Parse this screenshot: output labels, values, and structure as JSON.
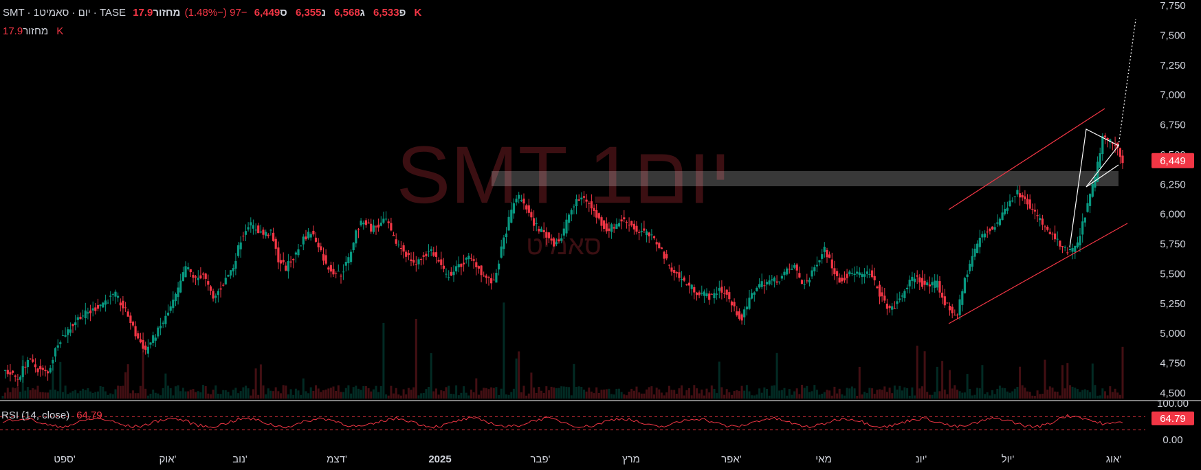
{
  "header": {
    "symbol": "SMT · 1יום · סאמיט · TASE",
    "o_label": "פ",
    "o_value": "6,533",
    "h_label": "ג",
    "h_value": "6,568",
    "l_label": "נ",
    "l_value": "6,355",
    "c_label": "ס",
    "c_value": "6,449",
    "change": "−97 (−1.48%)",
    "vol_label": "מחזור",
    "vol_value": "17.9 K"
  },
  "volume_legend": {
    "label": "מחזור",
    "value": "17.9 K"
  },
  "watermark": {
    "line1": "SMT 1יום",
    "line2": "סאמיט"
  },
  "colors": {
    "background": "#000000",
    "up": "#089981",
    "down": "#f23645",
    "text": "#d1d4dc",
    "rsi_line": "#f23645",
    "trend": "#f23645",
    "pattern": "#ffffff"
  },
  "chart_data": [
    {
      "type": "candlestick",
      "y_axis_ticks": [
        "7,750",
        "7,500",
        "7,250",
        "7,000",
        "6,750",
        "6,500",
        "6,250",
        "6,000",
        "5,750",
        "5,500",
        "5,250",
        "5,000",
        "4,750",
        "4,500"
      ],
      "ylim": [
        4500,
        7750
      ],
      "x_axis_labels": [
        "ספט'",
        "אוק'",
        "נוב'",
        "דצמ'",
        "2025",
        "פבר'",
        "מרץ",
        "אפר'",
        "מאי",
        "יונ'",
        "יול'",
        "אוג'"
      ],
      "last_price_label": "6,449",
      "price_path": [
        [
          0,
          4700
        ],
        [
          6,
          4620
        ],
        [
          10,
          4780
        ],
        [
          14,
          4700
        ],
        [
          18,
          4660
        ],
        [
          22,
          4930
        ],
        [
          27,
          5050
        ],
        [
          31,
          5150
        ],
        [
          35,
          5180
        ],
        [
          40,
          5260
        ],
        [
          45,
          5320
        ],
        [
          50,
          5150
        ],
        [
          53,
          4990
        ],
        [
          57,
          4860
        ],
        [
          62,
          5020
        ],
        [
          66,
          5170
        ],
        [
          70,
          5360
        ],
        [
          73,
          5560
        ],
        [
          77,
          5450
        ],
        [
          80,
          5500
        ],
        [
          84,
          5280
        ],
        [
          88,
          5420
        ],
        [
          92,
          5560
        ],
        [
          95,
          5790
        ],
        [
          98,
          5920
        ],
        [
          101,
          5880
        ],
        [
          104,
          5830
        ],
        [
          107,
          5840
        ],
        [
          110,
          5620
        ],
        [
          113,
          5550
        ],
        [
          117,
          5660
        ],
        [
          120,
          5800
        ],
        [
          123,
          5850
        ],
        [
          126,
          5750
        ],
        [
          129,
          5570
        ],
        [
          132,
          5520
        ],
        [
          135,
          5500
        ],
        [
          138,
          5620
        ],
        [
          141,
          5850
        ],
        [
          144,
          5950
        ],
        [
          147,
          5880
        ],
        [
          150,
          5900
        ],
        [
          153,
          5950
        ],
        [
          156,
          5790
        ],
        [
          159,
          5720
        ],
        [
          162,
          5640
        ],
        [
          165,
          5580
        ],
        [
          168,
          5650
        ],
        [
          171,
          5700
        ],
        [
          174,
          5600
        ],
        [
          177,
          5480
        ],
        [
          180,
          5520
        ],
        [
          183,
          5580
        ],
        [
          186,
          5630
        ],
        [
          189,
          5580
        ],
        [
          192,
          5480
        ],
        [
          194,
          5450
        ],
        [
          196,
          5420
        ],
        [
          199,
          5700
        ],
        [
          202,
          5950
        ],
        [
          205,
          6150
        ],
        [
          208,
          6100
        ],
        [
          211,
          5950
        ],
        [
          214,
          5880
        ],
        [
          217,
          5820
        ],
        [
          220,
          5760
        ],
        [
          223,
          5800
        ],
        [
          226,
          6000
        ],
        [
          229,
          6100
        ],
        [
          232,
          6150
        ],
        [
          235,
          6050
        ],
        [
          238,
          5950
        ],
        [
          241,
          5870
        ],
        [
          244,
          5900
        ],
        [
          247,
          5950
        ],
        [
          250,
          5930
        ],
        [
          253,
          5860
        ],
        [
          256,
          5850
        ],
        [
          259,
          5800
        ],
        [
          262,
          5740
        ],
        [
          265,
          5600
        ],
        [
          268,
          5520
        ],
        [
          271,
          5450
        ],
        [
          274,
          5400
        ],
        [
          277,
          5350
        ],
        [
          280,
          5330
        ],
        [
          283,
          5300
        ],
        [
          286,
          5380
        ],
        [
          289,
          5320
        ],
        [
          292,
          5200
        ],
        [
          295,
          5120
        ],
        [
          298,
          5280
        ],
        [
          301,
          5400
        ],
        [
          304,
          5430
        ],
        [
          307,
          5440
        ],
        [
          310,
          5460
        ],
        [
          313,
          5520
        ],
        [
          316,
          5560
        ],
        [
          319,
          5420
        ],
        [
          322,
          5450
        ],
        [
          325,
          5600
        ],
        [
          328,
          5720
        ],
        [
          331,
          5560
        ],
        [
          334,
          5450
        ],
        [
          337,
          5480
        ],
        [
          340,
          5520
        ],
        [
          343,
          5480
        ],
        [
          346,
          5500
        ],
        [
          349,
          5380
        ],
        [
          352,
          5250
        ],
        [
          355,
          5200
        ],
        [
          358,
          5280
        ],
        [
          361,
          5400
        ],
        [
          364,
          5480
        ],
        [
          367,
          5420
        ],
        [
          370,
          5400
        ],
        [
          373,
          5420
        ],
        [
          376,
          5250
        ],
        [
          379,
          5180
        ],
        [
          381,
          5160
        ],
        [
          384,
          5450
        ],
        [
          387,
          5650
        ],
        [
          390,
          5800
        ],
        [
          393,
          5850
        ],
        [
          396,
          5900
        ],
        [
          399,
          6000
        ],
        [
          402,
          6120
        ],
        [
          405,
          6180
        ],
        [
          408,
          6150
        ],
        [
          411,
          6030
        ],
        [
          414,
          5950
        ],
        [
          417,
          5850
        ],
        [
          420,
          5800
        ],
        [
          423,
          5700
        ],
        [
          426,
          5690
        ],
        [
          429,
          5740
        ],
        [
          432,
          6000
        ],
        [
          436,
          6300
        ],
        [
          439,
          6650
        ],
        [
          442,
          6600
        ],
        [
          445,
          6560
        ],
        [
          447,
          6449
        ]
      ]
    },
    {
      "type": "line",
      "name": "RSI (14, close)",
      "value_label": "64.79",
      "y_axis_ticks": [
        "100.00",
        "0.00"
      ],
      "ylim": [
        0,
        100
      ],
      "levels": [
        70,
        30
      ]
    }
  ]
}
